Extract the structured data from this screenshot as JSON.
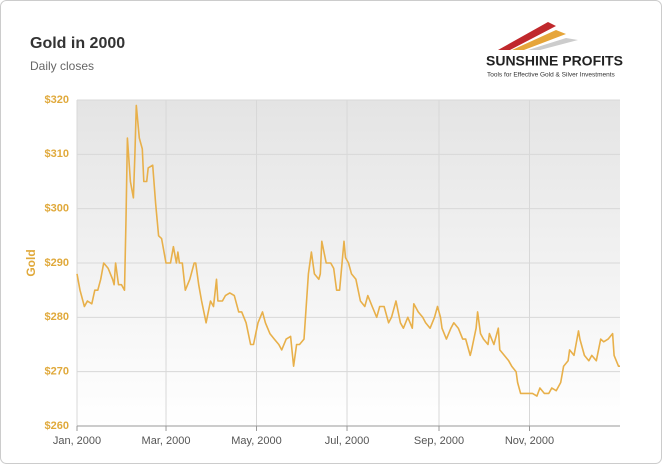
{
  "chart_data": {
    "type": "line",
    "title": "Gold in 2000",
    "subtitle": "Daily closes",
    "y_label": "Gold",
    "logo": {
      "name": "SUNSHINE PROFITS",
      "tagline": "Tools for Effective Gold & Silver Investments"
    },
    "color": "#e8b04a",
    "grid": true,
    "xlim": [
      0,
      366
    ],
    "xticks": [
      {
        "value": 0,
        "label": "Jan, 2000"
      },
      {
        "value": 60,
        "label": "Mar, 2000"
      },
      {
        "value": 121,
        "label": "May, 2000"
      },
      {
        "value": 182,
        "label": "Jul, 2000"
      },
      {
        "value": 244,
        "label": "Sep, 2000"
      },
      {
        "value": 305,
        "label": "Nov, 2000"
      }
    ],
    "ylim": [
      260,
      320
    ],
    "yticks": [
      {
        "value": 260,
        "label": "$260"
      },
      {
        "value": 270,
        "label": "$270"
      },
      {
        "value": 280,
        "label": "$280"
      },
      {
        "value": 290,
        "label": "$290"
      },
      {
        "value": 300,
        "label": "$300"
      },
      {
        "value": 310,
        "label": "$310"
      },
      {
        "value": 320,
        "label": "$320"
      }
    ],
    "x": [
      0,
      2,
      5,
      7,
      10,
      12,
      14,
      16,
      18,
      21,
      24,
      25,
      26,
      28,
      30,
      32,
      33,
      34,
      36,
      38,
      39,
      40,
      42,
      44,
      45,
      47,
      48,
      51,
      53,
      55,
      57,
      60,
      63,
      65,
      67,
      68,
      69,
      71,
      73,
      76,
      79,
      80,
      82,
      84,
      87,
      90,
      92,
      94,
      95,
      98,
      100,
      103,
      106,
      109,
      111,
      114,
      117,
      119,
      122,
      125,
      127,
      130,
      133,
      136,
      138,
      141,
      144,
      146,
      148,
      150,
      153,
      156,
      158,
      160,
      163,
      164,
      165,
      168,
      171,
      173,
      175,
      177,
      180,
      181,
      183,
      185,
      188,
      191,
      194,
      196,
      199,
      202,
      204,
      207,
      210,
      212,
      215,
      218,
      220,
      223,
      226,
      227,
      230,
      233,
      235,
      238,
      241,
      243,
      245,
      246,
      249,
      252,
      254,
      257,
      260,
      262,
      265,
      266,
      269,
      270,
      272,
      274,
      277,
      278,
      281,
      284,
      285,
      288,
      291,
      293,
      296,
      297,
      299,
      301,
      304,
      307,
      310,
      312,
      315,
      318,
      320,
      323,
      326,
      328,
      331,
      332,
      335,
      338,
      339,
      342,
      345,
      347,
      350,
      353,
      355,
      358,
      361,
      362,
      365,
      366
    ],
    "values": [
      288,
      285,
      282,
      283,
      282.5,
      285,
      285,
      287,
      290,
      289,
      287,
      286,
      290,
      286,
      286,
      285,
      298,
      313,
      305,
      302,
      310,
      319,
      313,
      311,
      305,
      305,
      307.5,
      308,
      301,
      295,
      294.5,
      290,
      290,
      293,
      290,
      292,
      290,
      290,
      285,
      287,
      290,
      290,
      286,
      283,
      279,
      283,
      282,
      287,
      283,
      283,
      284,
      284.5,
      284,
      281,
      281,
      279,
      275,
      275,
      279,
      281,
      279,
      277,
      276,
      275,
      274,
      276,
      276.5,
      271,
      275,
      275,
      276,
      288,
      292,
      288,
      287,
      288,
      294,
      290,
      290,
      289,
      285,
      285,
      294,
      291,
      290,
      288,
      287,
      283,
      282,
      284,
      282,
      280,
      282,
      282,
      279,
      280,
      283,
      279,
      278,
      280,
      278,
      282.5,
      281,
      280,
      279,
      278,
      280,
      282,
      280,
      278,
      276,
      278,
      279,
      278,
      276,
      276,
      273,
      274,
      278,
      281,
      277,
      276,
      275,
      277,
      275,
      278,
      274,
      273,
      272,
      271,
      270,
      268,
      266,
      266,
      266,
      266,
      265.5,
      267,
      266,
      266,
      267,
      266.5,
      268,
      271,
      272,
      274,
      273,
      277.5,
      276,
      273,
      272,
      273,
      272,
      276,
      275.5,
      276,
      277,
      273,
      271,
      271
    ]
  }
}
